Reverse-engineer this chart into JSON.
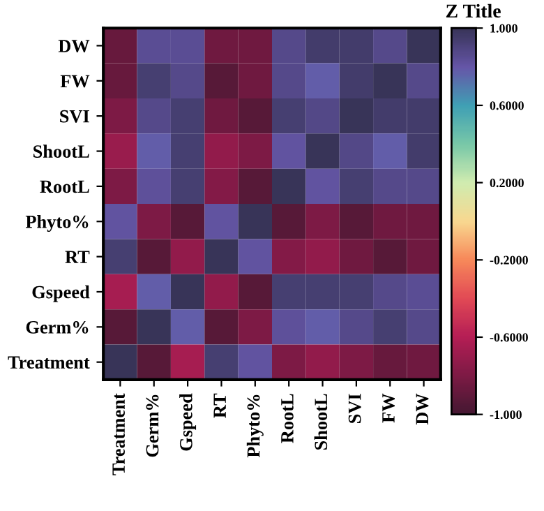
{
  "chart_data": {
    "type": "heatmap",
    "clabel": "Z Title",
    "categories": [
      "Treatment",
      "Germ%",
      "Gspeed",
      "RT",
      "Phyto%",
      "RootL",
      "ShootL",
      "SVI",
      "FW",
      "DW"
    ],
    "y_categories": [
      "DW",
      "FW",
      "SVI",
      "ShootL",
      "RootL",
      "Phyto%",
      "RT",
      "Gspeed",
      "Germ%",
      "Treatment"
    ],
    "cells": [
      [
        -0.88,
        0.85,
        0.85,
        -0.85,
        -0.85,
        0.87,
        0.95,
        0.95,
        0.87,
        1.0
      ],
      [
        -0.88,
        0.93,
        0.87,
        -0.93,
        -0.85,
        0.87,
        0.78,
        0.95,
        1.0,
        0.87
      ],
      [
        -0.8,
        0.87,
        0.93,
        -0.85,
        -0.93,
        0.93,
        0.88,
        1.0,
        0.95,
        0.95
      ],
      [
        -0.7,
        0.78,
        0.93,
        -0.72,
        -0.8,
        0.82,
        1.0,
        0.88,
        0.78,
        0.95
      ],
      [
        -0.8,
        0.83,
        0.93,
        -0.78,
        -0.93,
        1.0,
        0.82,
        0.93,
        0.87,
        0.87
      ],
      [
        0.82,
        -0.8,
        -0.93,
        0.82,
        1.0,
        -0.93,
        -0.8,
        -0.93,
        -0.85,
        -0.85
      ],
      [
        0.93,
        -0.93,
        -0.72,
        1.0,
        0.82,
        -0.78,
        -0.72,
        -0.85,
        -0.93,
        -0.85
      ],
      [
        -0.65,
        0.78,
        1.0,
        -0.72,
        -0.93,
        0.93,
        0.93,
        0.93,
        0.87,
        0.85
      ],
      [
        -0.93,
        1.0,
        0.78,
        -0.93,
        -0.8,
        0.83,
        0.78,
        0.87,
        0.93,
        0.87
      ],
      [
        1.0,
        -0.93,
        -0.65,
        0.93,
        0.82,
        -0.8,
        -0.72,
        -0.8,
        -0.88,
        -0.85
      ]
    ],
    "clim": [
      -1,
      1
    ],
    "cticks": [
      {
        "value": -1,
        "label": "-1.000"
      },
      {
        "value": -0.6,
        "label": "-0.6000"
      },
      {
        "value": -0.2,
        "label": "-0.2000"
      },
      {
        "value": 0.2,
        "label": "0.2000"
      },
      {
        "value": 0.6,
        "label": "0.6000"
      },
      {
        "value": 1,
        "label": "1.000"
      }
    ]
  }
}
